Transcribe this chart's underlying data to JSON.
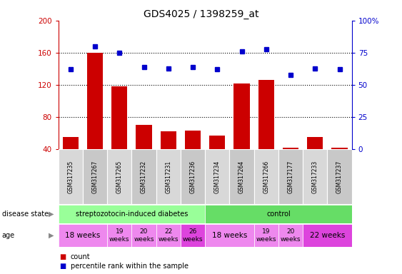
{
  "title": "GDS4025 / 1398259_at",
  "samples": [
    "GSM317235",
    "GSM317267",
    "GSM317265",
    "GSM317232",
    "GSM317231",
    "GSM317236",
    "GSM317234",
    "GSM317264",
    "GSM317266",
    "GSM317177",
    "GSM317233",
    "GSM317237"
  ],
  "counts": [
    55,
    160,
    118,
    70,
    62,
    63,
    57,
    122,
    126,
    42,
    55,
    42
  ],
  "percentiles": [
    62,
    80,
    75,
    64,
    63,
    64,
    62,
    76,
    78,
    58,
    63,
    62
  ],
  "bar_color": "#cc0000",
  "dot_color": "#0000cc",
  "ylim_left": [
    40,
    200
  ],
  "ylim_right": [
    0,
    100
  ],
  "yticks_left": [
    40,
    80,
    120,
    160,
    200
  ],
  "yticks_right": [
    0,
    25,
    50,
    75,
    100
  ],
  "ytick_right_labels": [
    "0",
    "25",
    "50",
    "75",
    "100%"
  ],
  "disease_state_groups": [
    {
      "label": "streptozotocin-induced diabetes",
      "start": 0,
      "end": 6,
      "color": "#99ff99"
    },
    {
      "label": "control",
      "start": 6,
      "end": 12,
      "color": "#66dd66"
    }
  ],
  "age_groups": [
    {
      "label": "18 weeks",
      "start": 0,
      "end": 2,
      "color": "#ee88ee",
      "fontsize": 7.5,
      "multiline": false
    },
    {
      "label": "19\nweeks",
      "start": 2,
      "end": 3,
      "color": "#ee88ee",
      "fontsize": 6.5,
      "multiline": true
    },
    {
      "label": "20\nweeks",
      "start": 3,
      "end": 4,
      "color": "#ee88ee",
      "fontsize": 6.5,
      "multiline": true
    },
    {
      "label": "22\nweeks",
      "start": 4,
      "end": 5,
      "color": "#ee88ee",
      "fontsize": 6.5,
      "multiline": true
    },
    {
      "label": "26\nweeks",
      "start": 5,
      "end": 6,
      "color": "#dd44dd",
      "fontsize": 6.5,
      "multiline": true
    },
    {
      "label": "18 weeks",
      "start": 6,
      "end": 8,
      "color": "#ee88ee",
      "fontsize": 7.5,
      "multiline": false
    },
    {
      "label": "19\nweeks",
      "start": 8,
      "end": 9,
      "color": "#ee88ee",
      "fontsize": 6.5,
      "multiline": true
    },
    {
      "label": "20\nweeks",
      "start": 9,
      "end": 10,
      "color": "#ee88ee",
      "fontsize": 6.5,
      "multiline": true
    },
    {
      "label": "22 weeks",
      "start": 10,
      "end": 12,
      "color": "#dd44dd",
      "fontsize": 7.5,
      "multiline": false
    }
  ],
  "bg_color": "#ffffff",
  "tick_color_left": "#cc0000",
  "tick_color_right": "#0000cc"
}
